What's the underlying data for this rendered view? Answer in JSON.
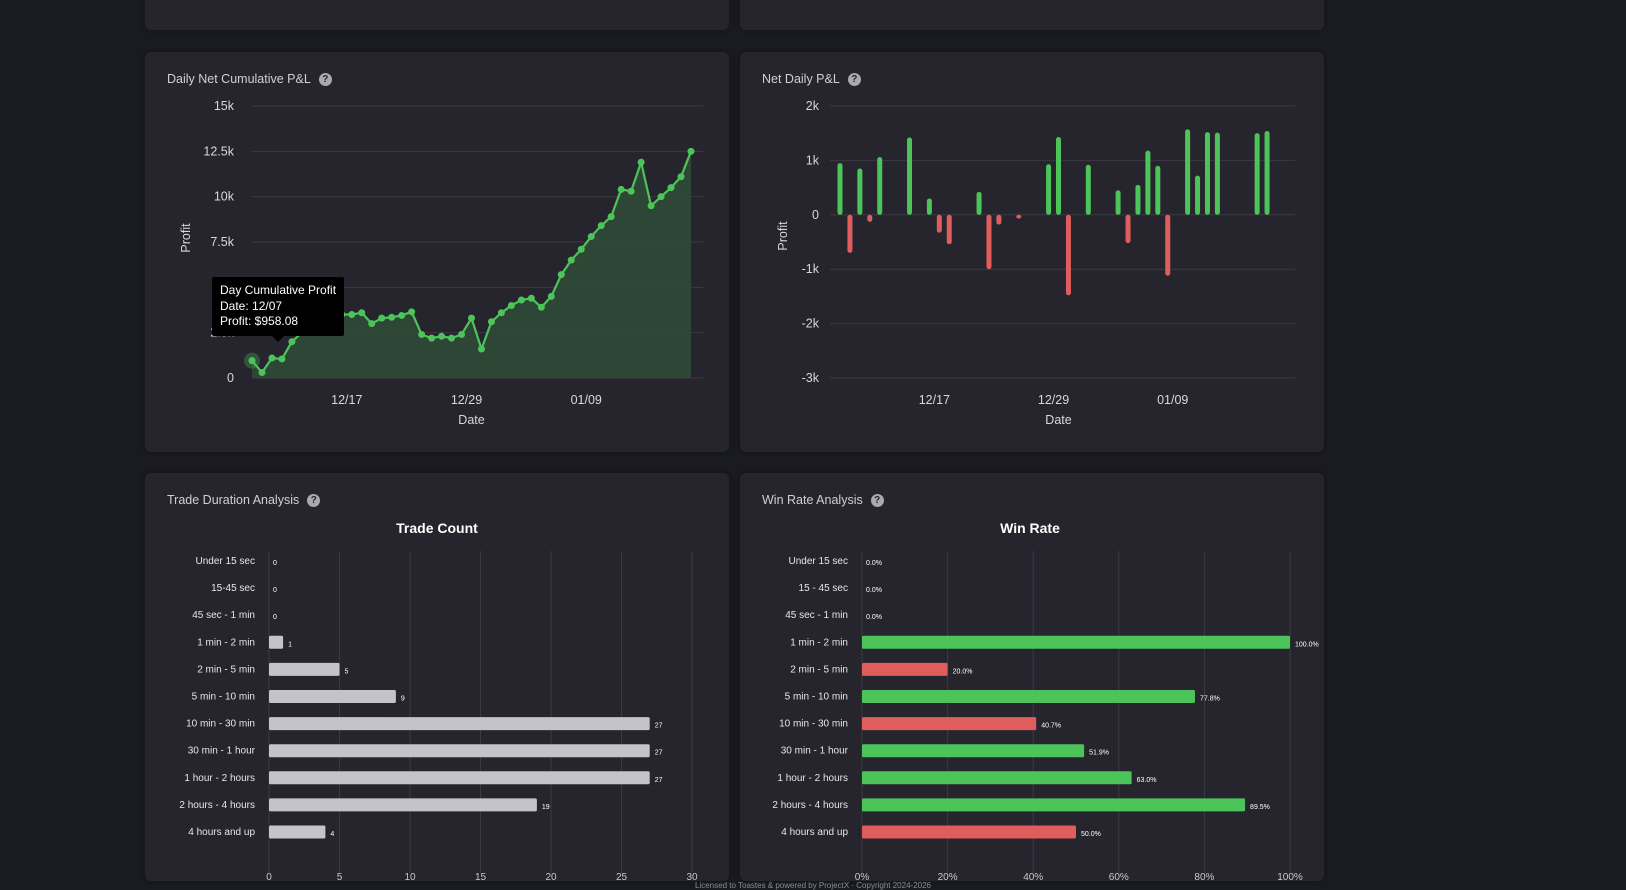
{
  "panels": {
    "cumulative": {
      "title": "Daily Net Cumulative P&L",
      "help_icon": "question-circle-icon"
    },
    "net_daily": {
      "title": "Net Daily P&L",
      "help_icon": "question-circle-icon"
    },
    "duration": {
      "title": "Trade Duration Analysis",
      "help_icon": "question-circle-icon"
    },
    "win_rate": {
      "title": "Win Rate Analysis",
      "help_icon": "question-circle-icon"
    }
  },
  "tooltip": {
    "title": "Day Cumulative Profit",
    "date_line": "Date: 12/07",
    "profit_line": "Profit: $958.08"
  },
  "footer": {
    "text": "Licensed to Toastes & powered by ProjectX · Copyright 2024-2026"
  },
  "colors": {
    "positive": "#4cc45a",
    "negative": "#e05d5d",
    "neutral_bar": "#c4c3c9",
    "area_fill": "#2f4a36",
    "grid": "#3b3a43"
  },
  "chart_data": [
    {
      "id": "cumulative",
      "type": "area",
      "xlabel": "Date",
      "ylabel": "Profit",
      "ylim": [
        0,
        15000
      ],
      "yticks": [
        0,
        2500,
        5000,
        7500,
        10000,
        12500,
        15000
      ],
      "ytick_labels": [
        "0",
        "2.5k",
        "5k",
        "7.5k",
        "10k",
        "12.5k",
        "15k"
      ],
      "xticks": [
        {
          "x": 9.5,
          "label": "12/17"
        },
        {
          "x": 21.5,
          "label": "12/29"
        },
        {
          "x": 33.5,
          "label": "01/09"
        }
      ],
      "x": [
        0,
        1,
        2,
        3,
        4,
        5,
        6,
        7,
        8,
        9,
        10,
        11,
        12,
        13,
        14,
        15,
        16,
        17,
        18,
        19,
        20,
        21,
        22,
        23,
        24,
        25,
        26,
        27,
        28,
        29,
        30,
        31,
        32,
        33,
        34,
        35,
        36,
        37,
        38,
        39,
        40,
        41,
        42,
        43,
        44
      ],
      "values": [
        958,
        300,
        1100,
        1050,
        2000,
        2500,
        3000,
        3400,
        3500,
        3500,
        3500,
        3600,
        3000,
        3300,
        3350,
        3450,
        3650,
        2400,
        2200,
        2300,
        2200,
        2400,
        3300,
        1600,
        3100,
        3600,
        4000,
        4300,
        4400,
        3900,
        4500,
        5700,
        6500,
        7100,
        7800,
        8400,
        8900,
        10400,
        10300,
        11900,
        9500,
        10000,
        10500,
        11100,
        12500
      ]
    },
    {
      "id": "net_daily",
      "type": "bar",
      "xlabel": "Date",
      "ylabel": "Profit",
      "ylim": [
        -3000,
        2000
      ],
      "yticks": [
        -3000,
        -2000,
        -1000,
        0,
        1000,
        2000
      ],
      "ytick_labels": [
        "-3k",
        "-2k",
        "-1k",
        "0",
        "1k",
        "2k"
      ],
      "xticks": [
        {
          "x": 9.5,
          "label": "12/17"
        },
        {
          "x": 21.5,
          "label": "12/29"
        },
        {
          "x": 33.5,
          "label": "01/09"
        }
      ],
      "x": [
        0,
        1,
        2,
        3,
        4,
        7,
        9,
        10,
        11,
        14,
        15,
        16,
        18,
        21,
        22,
        23,
        25,
        28,
        29,
        30,
        31,
        32,
        33,
        35,
        36,
        37,
        38,
        42,
        43
      ],
      "values": [
        950,
        -700,
        850,
        -130,
        1060,
        1420,
        300,
        -330,
        -540,
        420,
        -1000,
        -180,
        -70,
        930,
        1430,
        -1480,
        920,
        450,
        -520,
        550,
        1180,
        900,
        -1120,
        1570,
        720,
        1520,
        1510,
        1500,
        1540
      ]
    },
    {
      "id": "trade_count",
      "type": "bar",
      "orientation": "horizontal",
      "title": "Trade Count",
      "xlim": [
        0,
        30
      ],
      "xticks": [
        0,
        5,
        10,
        15,
        20,
        25,
        30
      ],
      "categories": [
        "Under 15 sec",
        "15-45 sec",
        "45 sec - 1 min",
        "1 min - 2 min",
        "2 min - 5 min",
        "5 min - 10 min",
        "10 min - 30 min",
        "30 min - 1 hour",
        "1 hour - 2 hours",
        "2 hours - 4 hours",
        "4 hours and up"
      ],
      "values": [
        0,
        0,
        0,
        1,
        5,
        9,
        27,
        27,
        27,
        19,
        4
      ],
      "value_labels": [
        "0",
        "0",
        "0",
        "1",
        "5",
        "9",
        "27",
        "27",
        "27",
        "19",
        "4"
      ]
    },
    {
      "id": "win_rate",
      "type": "bar",
      "orientation": "horizontal",
      "title": "Win Rate",
      "xlim": [
        0,
        100
      ],
      "xticks": [
        0,
        20,
        40,
        60,
        80,
        100
      ],
      "xtick_labels": [
        "0%",
        "20%",
        "40%",
        "60%",
        "80%",
        "100%"
      ],
      "categories": [
        "Under 15 sec",
        "15 - 45 sec",
        "45 sec - 1 min",
        "1 min - 2 min",
        "2 min - 5 min",
        "5 min - 10 min",
        "10 min - 30 min",
        "30 min - 1 hour",
        "1 hour - 2 hours",
        "2 hours - 4 hours",
        "4 hours and up"
      ],
      "values": [
        0,
        0,
        0,
        100,
        20,
        77.8,
        40.7,
        51.9,
        63.0,
        89.5,
        50.0
      ],
      "value_labels": [
        "0.0%",
        "0.0%",
        "0.0%",
        "100.0%",
        "20.0%",
        "77.8%",
        "40.7%",
        "51.9%",
        "63.0%",
        "89.5%",
        "50.0%"
      ],
      "positive_threshold": 50.1
    }
  ]
}
